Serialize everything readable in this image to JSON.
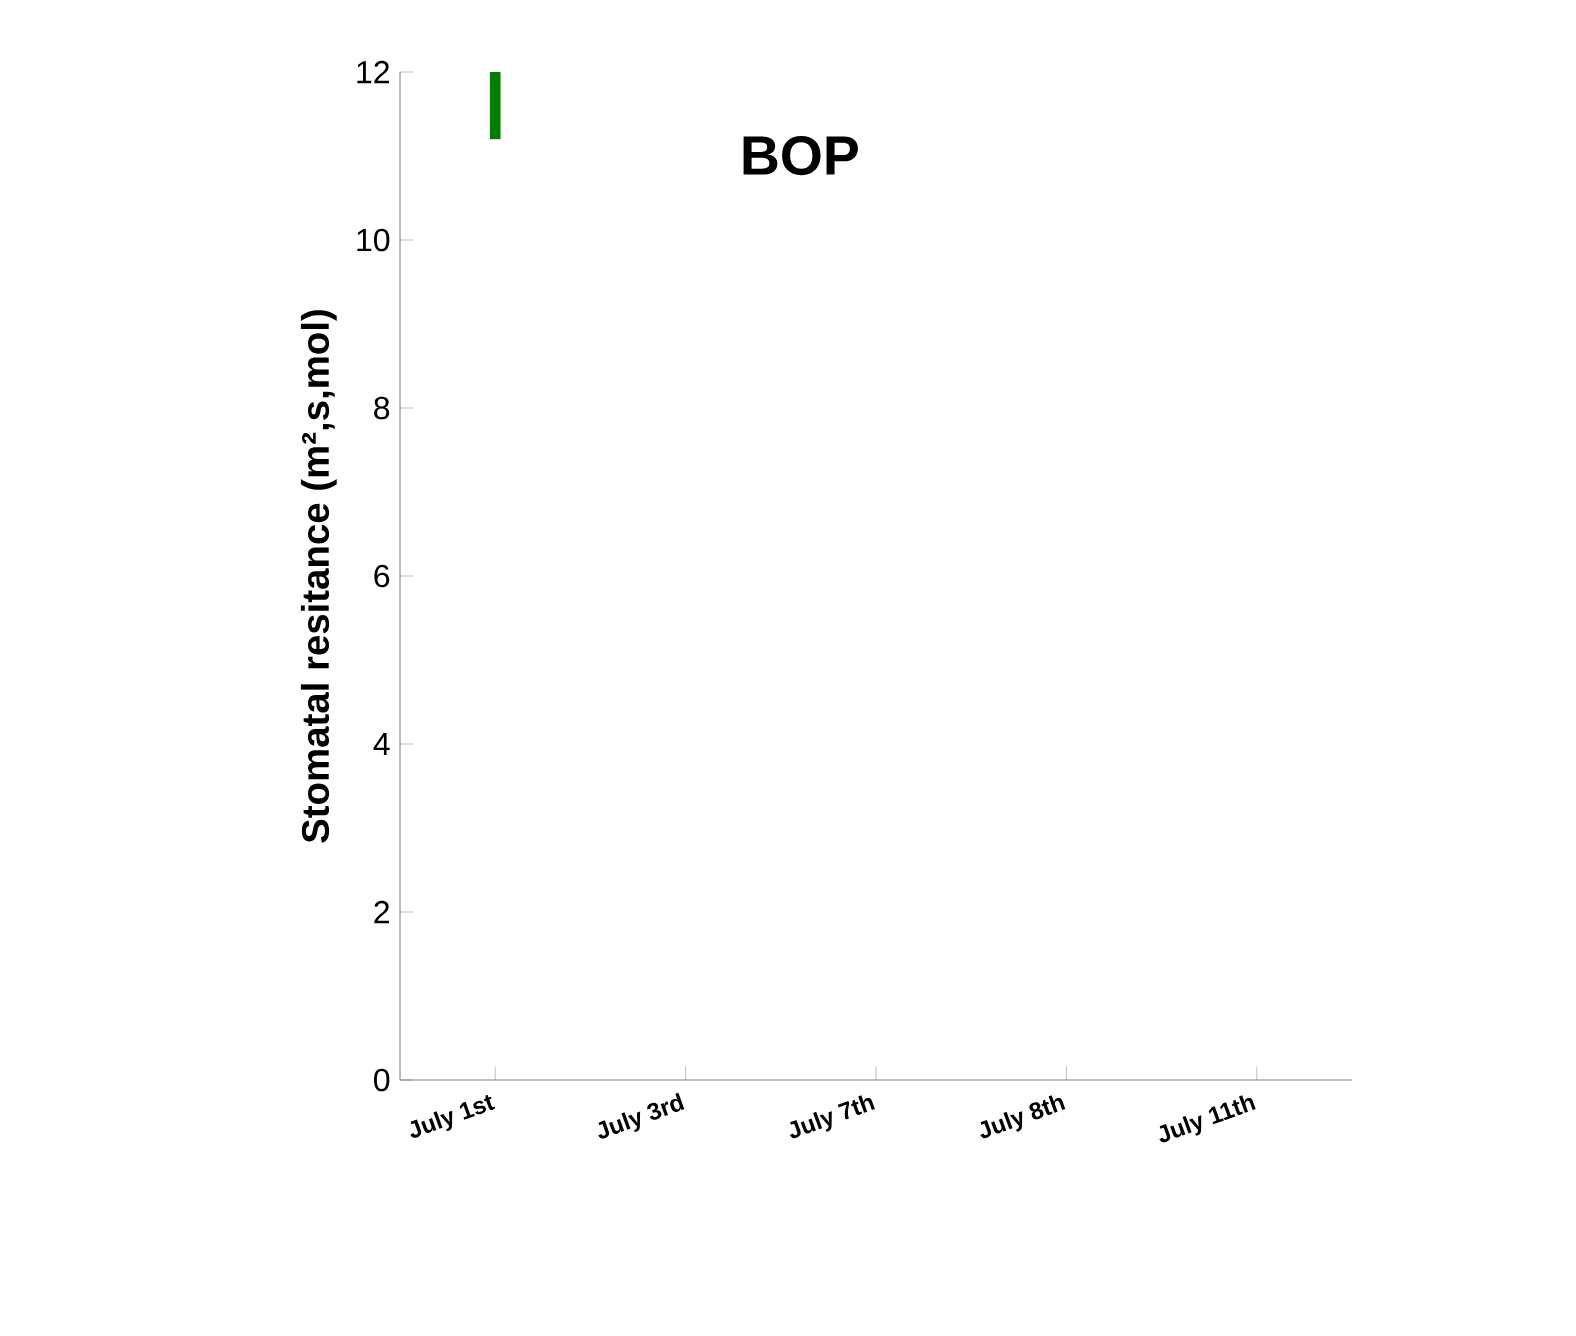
{
  "chart_data": {
    "type": "bar",
    "title": "BOP",
    "ylabel": "Stomatal resitance (m²,s,mol)",
    "categories": [
      "July 1st",
      "July 3rd",
      "July 7th",
      "July 8th",
      "July 11th"
    ],
    "series": [
      {
        "color": "#008000",
        "values": [
          0.8,
          null,
          null,
          null,
          null
        ],
        "base": [
          11.2,
          null,
          null,
          null,
          null
        ]
      }
    ],
    "ylim": [
      0,
      12
    ],
    "yticks": [
      0,
      2,
      4,
      6,
      8,
      10,
      12
    ],
    "grid": false
  }
}
